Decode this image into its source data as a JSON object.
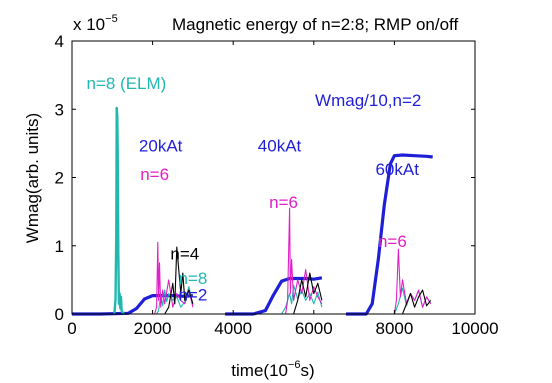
{
  "chart_data": {
    "type": "line",
    "title": "Magnetic energy of n=2:8; RMP on/off",
    "exponent_label": "x 10",
    "exponent_power": "−5",
    "xlabel": "time(10",
    "xlabel_power": "−6",
    "xlabel_suffix": "s)",
    "ylabel": "Wmag(arb. units)",
    "xlim": [
      0,
      10000
    ],
    "ylim": [
      0,
      4
    ],
    "x_ticks": [
      "0",
      "2000",
      "4000",
      "6000",
      "8000",
      "10000"
    ],
    "y_ticks": [
      "0",
      "1",
      "2",
      "3",
      "4"
    ],
    "grid": false,
    "legend": "none",
    "colors": {
      "n2": "#1f1fd6",
      "n8": "#22b8b0",
      "n6": "#e020c8",
      "n4": "#000000",
      "axes": "#000000"
    },
    "annotations": [
      {
        "text": "n=8 (ELM)",
        "color": "#22b8b0",
        "x": 1350,
        "y": 3.3
      },
      {
        "text": "20kAt",
        "color": "#1f1fd6",
        "x": 2200,
        "y": 2.38
      },
      {
        "text": "n=6",
        "color": "#e020c8",
        "x": 2050,
        "y": 1.96
      },
      {
        "text": "n=4",
        "color": "#000000",
        "x": 2800,
        "y": 0.8
      },
      {
        "text": "n=8",
        "color": "#22b8b0",
        "x": 3000,
        "y": 0.44
      },
      {
        "text": "n=2",
        "color": "#1f1fd6",
        "x": 3000,
        "y": 0.2
      },
      {
        "text": "40kAt",
        "color": "#1f1fd6",
        "x": 5150,
        "y": 2.38
      },
      {
        "text": "n=6",
        "color": "#e020c8",
        "x": 5250,
        "y": 1.55
      },
      {
        "text": "Wmag/10,n=2",
        "color": "#1f1fd6",
        "x": 7350,
        "y": 3.05
      },
      {
        "text": "60kAt",
        "color": "#1f1fd6",
        "x": 8070,
        "y": 2.04
      },
      {
        "text": "n=6",
        "color": "#e020c8",
        "x": 7950,
        "y": 0.98
      }
    ],
    "series": [
      {
        "key": "n2",
        "segments": [
          {
            "x": [
              0,
              700,
              1400,
              1600,
              1800,
              2000,
              2200,
              2500,
              2800,
              3000
            ],
            "y": [
              0,
              0,
              0.01,
              0.08,
              0.22,
              0.27,
              0.27,
              0.27,
              0.26,
              0.27
            ]
          },
          {
            "x": [
              3800,
              4500,
              4800,
              5000,
              5200,
              5400,
              5600,
              5800,
              6000,
              6200
            ],
            "y": [
              0,
              0,
              0.05,
              0.28,
              0.48,
              0.52,
              0.52,
              0.52,
              0.51,
              0.53
            ]
          },
          {
            "x": [
              6800,
              7300,
              7450,
              7600,
              7750,
              7900,
              8000,
              8200,
              8500,
              8800,
              8950
            ],
            "y": [
              0,
              0,
              0.15,
              0.8,
              1.6,
              2.2,
              2.32,
              2.33,
              2.32,
              2.31,
              2.3
            ]
          }
        ]
      },
      {
        "key": "n8",
        "segments": [
          {
            "x": [
              1050,
              1080,
              1100,
              1110,
              1125,
              1135,
              1150,
              1165,
              1180,
              1200,
              1215,
              1230,
              1250,
              1300
            ],
            "y": [
              0,
              0.2,
              1.2,
              3.02,
              2.9,
              2.4,
              0.9,
              0.15,
              0.3,
              0.08,
              0.25,
              0.05,
              0.02,
              0
            ],
            "width": 2.4
          },
          {
            "x": [
              2100,
              2150,
              2200,
              2250,
              2300,
              2350,
              2400,
              2500,
              2600,
              2700,
              2800,
              2900,
              3000
            ],
            "y": [
              0,
              0.05,
              0.28,
              0.12,
              0.35,
              0.18,
              0.3,
              0.2,
              0.25,
              0.1,
              0.18,
              0.4,
              0.12
            ]
          },
          {
            "x": [
              5200,
              5300,
              5400,
              5450,
              5500,
              5600,
              5700,
              5800,
              5900,
              6000,
              6100,
              6200
            ],
            "y": [
              0,
              0.1,
              0.3,
              0.15,
              0.42,
              0.22,
              0.35,
              0.2,
              0.3,
              0.15,
              0.32,
              0.1
            ]
          },
          {
            "x": [
              8000,
              8100,
              8200,
              8300,
              8400,
              8500,
              8600,
              8700,
              8800,
              8900
            ],
            "y": [
              0,
              0.15,
              0.38,
              0.12,
              0.3,
              0.2,
              0.35,
              0.1,
              0.25,
              0.15
            ]
          }
        ]
      },
      {
        "key": "n6",
        "segments": [
          {
            "x": [
              2050,
              2100,
              2130,
              2150,
              2170,
              2200,
              2250,
              2300,
              2400,
              2500,
              2600,
              2700,
              2800,
              2900,
              3000
            ],
            "y": [
              0,
              0.1,
              1.05,
              0.2,
              0.75,
              0.1,
              0.35,
              0.15,
              0.5,
              0.1,
              0.3,
              0.2,
              0.15,
              0.35,
              0.1
            ]
          },
          {
            "x": [
              5300,
              5350,
              5400,
              5420,
              5450,
              5500,
              5600,
              5700,
              5800,
              5900,
              6000,
              6100,
              6200
            ],
            "y": [
              0,
              0.2,
              1.55,
              0.3,
              0.8,
              0.2,
              0.5,
              0.3,
              0.65,
              0.2,
              0.4,
              0.25,
              0.15
            ]
          },
          {
            "x": [
              8000,
              8050,
              8100,
              8150,
              8200,
              8300,
              8400,
              8500,
              8600,
              8700,
              8800,
              8900
            ],
            "y": [
              0,
              0.2,
              0.95,
              0.25,
              0.5,
              0.15,
              0.3,
              0.2,
              0.35,
              0.1,
              0.25,
              0.15
            ]
          }
        ]
      },
      {
        "key": "n4",
        "segments": [
          {
            "x": [
              2300,
              2400,
              2500,
              2550,
              2600,
              2700,
              2750,
              2800,
              2900,
              3000
            ],
            "y": [
              0,
              0.1,
              0.45,
              0.15,
              0.98,
              0.3,
              0.6,
              0.2,
              0.35,
              0.15
            ]
          },
          {
            "x": [
              5500,
              5600,
              5700,
              5800,
              5900,
              6000,
              6100,
              6200
            ],
            "y": [
              0,
              0.2,
              0.5,
              0.25,
              0.6,
              0.3,
              0.45,
              0.2
            ]
          },
          {
            "x": [
              8200,
              8300,
              8400,
              8500,
              8600,
              8700,
              8800,
              8900
            ],
            "y": [
              0,
              0.15,
              0.3,
              0.1,
              0.25,
              0.35,
              0.12,
              0.2
            ]
          }
        ]
      }
    ]
  }
}
